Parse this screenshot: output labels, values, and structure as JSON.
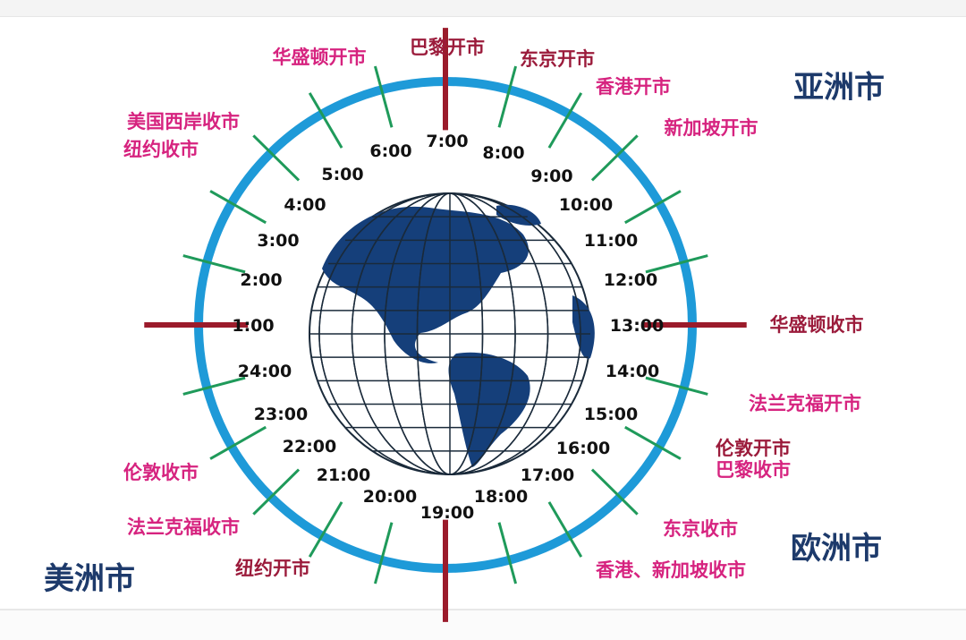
{
  "colors": {
    "ring": "#1e9ad8",
    "tick_green": "#1f9a5a",
    "tick_red": "#9b1b2b",
    "label_pink": "#d6237f",
    "label_darkred": "#9b1b3b",
    "region": "#1d3a6b",
    "land": "#153f7a",
    "grid": "#1a2a3a"
  },
  "hours": [
    "7:00",
    "8:00",
    "9:00",
    "10:00",
    "11:00",
    "12:00",
    "13:00",
    "14:00",
    "15:00",
    "16:00",
    "17:00",
    "18:00",
    "19:00",
    "20:00",
    "21:00",
    "22:00",
    "23:00",
    "24:00",
    "1:00",
    "2:00",
    "3:00",
    "4:00",
    "5:00",
    "6:00"
  ],
  "regions": {
    "asia": "亚洲市",
    "europe": "欧洲市",
    "americas": "美洲市"
  },
  "events": [
    {
      "text": "华盛顿开市",
      "color": "pink"
    },
    {
      "text": "巴黎开市",
      "color": "darkred"
    },
    {
      "text": "东京开市",
      "color": "darkred"
    },
    {
      "text": "香港开市",
      "color": "pink"
    },
    {
      "text": "新加坡开市",
      "color": "pink"
    },
    {
      "text": "美国西岸收市",
      "color": "pink"
    },
    {
      "text": "纽约收市",
      "color": "pink"
    },
    {
      "text": "华盛顿收市",
      "color": "darkred"
    },
    {
      "text": "法兰克福开市",
      "color": "pink"
    },
    {
      "text": "伦敦开市",
      "color": "darkred"
    },
    {
      "text": "巴黎收市",
      "color": "pink"
    },
    {
      "text": "东京收市",
      "color": "pink"
    },
    {
      "text": "香港、新加坡收市",
      "color": "pink"
    },
    {
      "text": "纽约开市",
      "color": "darkred"
    },
    {
      "text": "法兰克福收市",
      "color": "pink"
    },
    {
      "text": "伦敦收市",
      "color": "pink"
    }
  ]
}
